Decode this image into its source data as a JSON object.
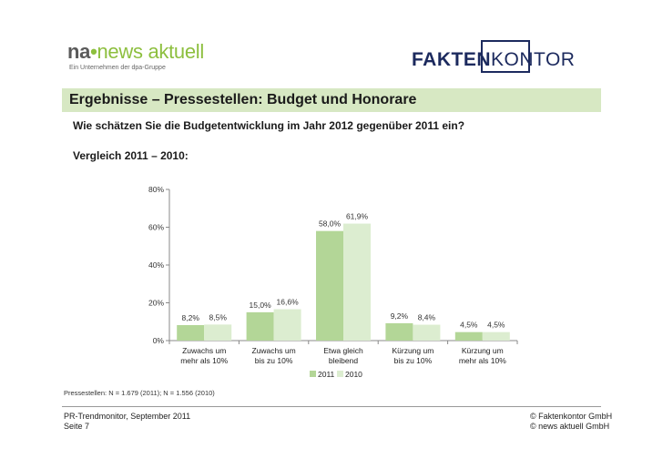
{
  "header": {
    "left_logo": {
      "brand_na": "na",
      "brand_news": "news aktuell",
      "subline": "Ein Unternehmen der dpa-Gruppe"
    },
    "right_logo": {
      "part1": "FAKTEN",
      "part2": "KONTOR"
    }
  },
  "title": "Ergebnisse – Pressestellen: Budget und Honorare",
  "question": "Wie schätzen Sie die Budgetentwicklung im Jahr 2012 gegenüber 2011 ein?",
  "comparison": "Vergleich 2011 – 2010:",
  "chart_data": {
    "type": "bar",
    "categories": [
      [
        "Zuwachs um",
        "mehr als 10%"
      ],
      [
        "Zuwachs um",
        "bis zu 10%"
      ],
      [
        "Etwa gleich",
        "bleibend"
      ],
      [
        "Kürzung um",
        "bis zu 10%"
      ],
      [
        "Kürzung um",
        "mehr als 10%"
      ]
    ],
    "series": [
      {
        "name": "2011",
        "color": "#b3d697",
        "values": [
          8.2,
          15.0,
          58.0,
          9.2,
          4.5
        ],
        "labels": [
          "8,2%",
          "15,0%",
          "58,0%",
          "9,2%",
          "4,5%"
        ]
      },
      {
        "name": "2010",
        "color": "#dcedd0",
        "values": [
          8.5,
          16.6,
          61.9,
          8.4,
          4.5
        ],
        "labels": [
          "8,5%",
          "16,6%",
          "61,9%",
          "8,4%",
          "4,5%"
        ]
      }
    ],
    "yticks": [
      0,
      20,
      40,
      60,
      80
    ],
    "ytick_labels": [
      "0%",
      "20%",
      "40%",
      "60%",
      "80%"
    ],
    "ylim": [
      0,
      80
    ],
    "legend_position": "bottom"
  },
  "footnote": "Pressestellen: N = 1.679 (2011); N = 1.556 (2010)",
  "footer": {
    "left_line1": "PR-Trendmonitor, September 2011",
    "left_line2": "Seite 7",
    "right_line1": "© Faktenkontor GmbH",
    "right_line2": "© news aktuell GmbH"
  }
}
